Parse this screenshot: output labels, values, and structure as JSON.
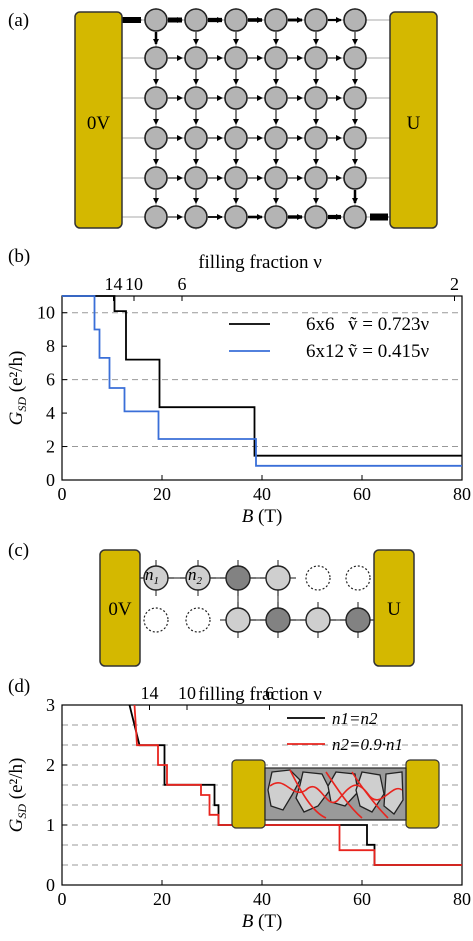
{
  "panels": {
    "a": {
      "label": "(a)",
      "left_contact": "0V",
      "right_contact": "U"
    },
    "b": {
      "label": "(b)"
    },
    "c": {
      "label": "(c)",
      "left_contact": "0V",
      "right_contact": "U",
      "dot1": "n",
      "dot1_sub": "1",
      "dot2": "n",
      "dot2_sub": "2"
    },
    "d": {
      "label": "(d)"
    }
  },
  "colors": {
    "contact": "#d4b800",
    "dot": "#b4b4b4",
    "dark_dot": "#828282",
    "light_dot": "#cfcfcf",
    "black": "#000000",
    "blue": "#3a6fd8",
    "red": "#e8241e",
    "grid": "#a8a8a8"
  },
  "chart_data": [
    {
      "type": "line",
      "top_axis_label": "filling fraction ν",
      "top_ticks": [
        {
          "label": "14",
          "b": 10.3
        },
        {
          "label": "10",
          "b": 14.4
        },
        {
          "label": "6",
          "b": 24.0
        },
        {
          "label": "2",
          "b": 78.5
        }
      ],
      "xlabel": "B (T)",
      "ylabel": "G_SD (e²/h)",
      "xlim": [
        0,
        80
      ],
      "ylim": [
        0,
        11
      ],
      "xticks": [
        0,
        20,
        40,
        60,
        80
      ],
      "yticks": [
        0,
        2,
        4,
        6,
        8,
        10
      ],
      "hlines": [
        2,
        6,
        10
      ],
      "legend_position": "top-right",
      "series": [
        {
          "name": "6x6",
          "legend_extra": "ṽ = 0.723ν",
          "color": "#000000",
          "x": [
            0,
            10.5,
            10.5,
            12.8,
            12.8,
            19.5,
            19.5,
            38.5,
            38.5,
            80
          ],
          "y": [
            11,
            11,
            10.1,
            10.1,
            7.2,
            7.2,
            4.35,
            4.35,
            1.45,
            1.45
          ]
        },
        {
          "name": "6x12",
          "legend_extra": "ṽ = 0.415ν",
          "color": "#3a6fd8",
          "x": [
            0,
            6.5,
            6.5,
            7.5,
            7.5,
            9.5,
            9.5,
            12.5,
            12.5,
            19.3,
            19.3,
            38.8,
            38.8,
            80
          ],
          "y": [
            11,
            11,
            9.0,
            9.0,
            7.3,
            7.3,
            5.5,
            5.5,
            4.1,
            4.1,
            2.45,
            2.45,
            0.85,
            0.85
          ]
        }
      ]
    },
    {
      "type": "line",
      "top_axis_label": "filling fraction ν",
      "top_ticks": [
        {
          "label": "14",
          "b": 17.5
        },
        {
          "label": "10",
          "b": 25.0
        },
        {
          "label": "6",
          "b": 41.5
        }
      ],
      "xlabel": "B (T)",
      "ylabel": "G_SD (e²/h)",
      "xlim": [
        0,
        80
      ],
      "ylim": [
        0,
        3
      ],
      "xticks": [
        0,
        20,
        40,
        60,
        80
      ],
      "yticks": [
        0,
        1,
        2,
        3
      ],
      "hlines": [
        0.333,
        0.667,
        1.0,
        1.333,
        1.667,
        2.0,
        2.333,
        2.667
      ],
      "legend_position": "top-right",
      "series": [
        {
          "name": "n1=n2",
          "color": "#000000",
          "x": [
            13.5,
            15.5,
            15.5,
            20.5,
            20.5,
            30.5,
            30.5,
            31.3,
            31.3,
            61.0,
            61.0,
            62.5,
            62.5,
            80
          ],
          "y": [
            3.0,
            2.33,
            2.33,
            2.33,
            1.67,
            1.67,
            1.33,
            1.33,
            1.0,
            1.0,
            0.67,
            0.67,
            0.333,
            0.333
          ]
        },
        {
          "name": "n2=0.9·n1",
          "color": "#e8241e",
          "x": [
            14.5,
            15.0,
            15.0,
            19.2,
            19.2,
            21.0,
            21.0,
            27.8,
            27.8,
            29.5,
            29.5,
            31.3,
            31.3,
            55.5,
            55.5,
            62.5,
            62.5,
            80
          ],
          "y": [
            3.0,
            2.33,
            2.33,
            2.33,
            2.0,
            2.0,
            1.67,
            1.67,
            1.5,
            1.5,
            1.17,
            1.17,
            1.0,
            1.0,
            0.58,
            0.58,
            0.333,
            0.333
          ]
        }
      ]
    }
  ]
}
